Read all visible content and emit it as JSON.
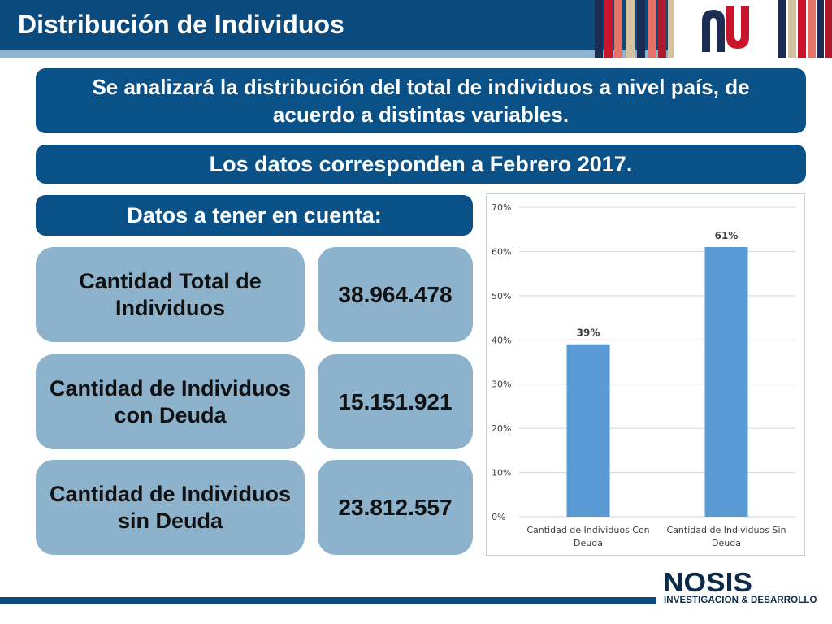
{
  "header": {
    "title": "Distribución de Individuos",
    "colors": {
      "bar": "#0a4a7c",
      "underline": "#8fb2cf"
    }
  },
  "banners": {
    "intro": "Se analizará la distribución del total de individuos a nivel país, de acuerdo a distintas variables.",
    "date_note": "Los datos corresponden a Febrero 2017.",
    "section_title": "Datos a tener en cuenta:"
  },
  "stats": [
    {
      "label": "Cantidad Total de Individuos",
      "value": "38.964.478"
    },
    {
      "label": "Cantidad de Individuos con Deuda",
      "value": "15.151.921"
    },
    {
      "label": "Cantidad de Individuos sin Deuda",
      "value": "23.812.557"
    }
  ],
  "chart_data": {
    "type": "bar",
    "categories": [
      "Cantidad de Individuos Con Deuda",
      "Cantidad de Individuos Sin Deuda"
    ],
    "category_lines": [
      [
        "Cantidad de Individuos Con",
        "Deuda"
      ],
      [
        "Cantidad de Individuos Sin",
        "Deuda"
      ]
    ],
    "values": [
      39,
      61
    ],
    "data_labels": [
      "39%",
      "61%"
    ],
    "ylim": [
      0,
      70
    ],
    "yticks": [
      0,
      10,
      20,
      30,
      40,
      50,
      60,
      70
    ],
    "ytick_labels": [
      "0%",
      "10%",
      "20%",
      "30%",
      "40%",
      "50%",
      "60%",
      "70%"
    ],
    "grid": true,
    "bar_color": "#5b9bd5"
  },
  "footer": {
    "brand": "NOSIS",
    "tagline": "INVESTIGACION & DESARROLLO"
  }
}
